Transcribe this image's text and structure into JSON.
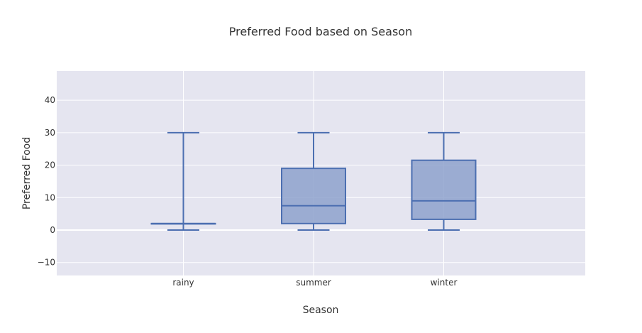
{
  "chart_data": {
    "type": "box",
    "title": "Preferred Food based on Season",
    "xlabel": "Season",
    "ylabel": "Preferred Food",
    "categories": [
      "rainy",
      "summer",
      "winter"
    ],
    "ylim": [
      -14,
      49
    ],
    "yticks": [
      -10,
      0,
      10,
      20,
      30,
      40
    ],
    "grid": true,
    "boxes": [
      {
        "category": "rainy",
        "min": 0,
        "q1": 2,
        "median": 2,
        "q3": 2,
        "max": 30
      },
      {
        "category": "summer",
        "min": 0,
        "q1": 2,
        "median": 7.5,
        "q3": 19,
        "max": 30
      },
      {
        "category": "winter",
        "min": 0,
        "q1": 3.3,
        "median": 9,
        "q3": 21.5,
        "max": 30
      }
    ],
    "colors": {
      "plot_bg": "#e5e5f0",
      "grid": "#ffffff",
      "box_line": "#4c6fb1",
      "box_fill": "#8ea2cc"
    }
  }
}
